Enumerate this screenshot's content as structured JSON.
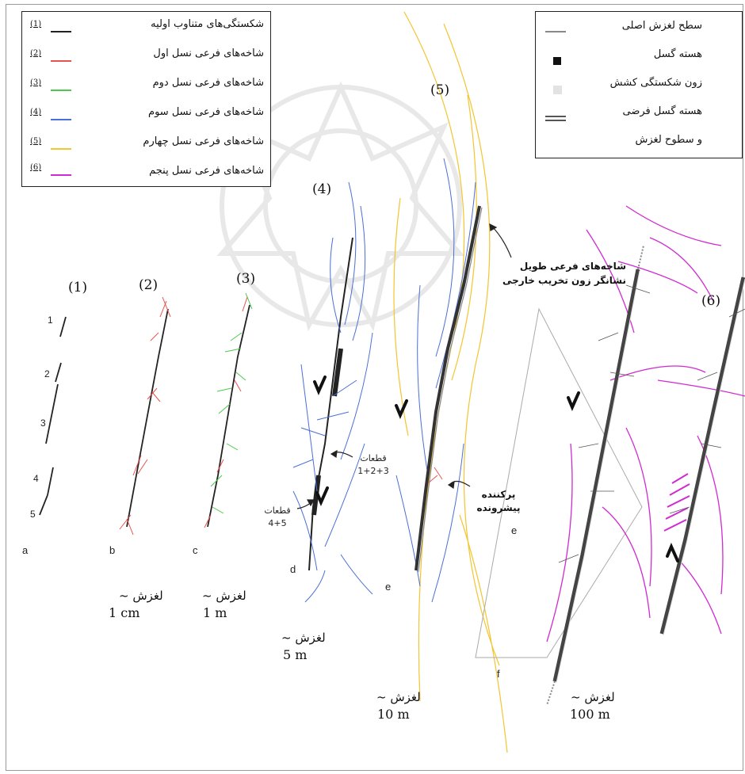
{
  "legend_left": {
    "items": [
      {
        "num": "(1)",
        "label": "شکستگی‌های متناوب اولیه",
        "color": "#222222"
      },
      {
        "num": "(2)",
        "label": "شاخه‌های فرعی نسل اول",
        "color": "#e8534f"
      },
      {
        "num": "(3)",
        "label": "شاخه‌های فرعی نسل دوم",
        "color": "#4cc94c"
      },
      {
        "num": "(4)",
        "label": "شاخه‌های فرعی نسل سوم",
        "color": "#4a6fd6"
      },
      {
        "num": "(5)",
        "label": "شاخه‌های فرعی نسل چهارم",
        "color": "#f2c531"
      },
      {
        "num": "(6)",
        "label": "شاخه‌های فرعی نسل پنجم",
        "color": "#d02ad0"
      }
    ]
  },
  "legend_right": {
    "items": [
      {
        "label": "سطح لغزش اصلی",
        "symbol": "line"
      },
      {
        "label": "هسته گسل",
        "symbol": "block"
      },
      {
        "label": "زون شکستگی کشش",
        "symbol": "light-square"
      },
      {
        "label": "هسته گسل فرضی",
        "symbol": "double-line"
      },
      {
        "label": "و سطوح لغزش",
        "symbol": "none"
      }
    ]
  },
  "stages": [
    "(1)",
    "(2)",
    "(3)",
    "(4)",
    "(5)",
    "(6)"
  ],
  "panels": [
    "a",
    "b",
    "c",
    "d",
    "e",
    "f"
  ],
  "segment_numbers": [
    "1",
    "2",
    "3",
    "4",
    "5"
  ],
  "slip_word": "لغزش ~",
  "slips": [
    "1 cm",
    "1 m",
    "5 m",
    "10 m",
    "100 m"
  ],
  "annotations": {
    "segments_123_word": "قطعات",
    "segments_123_nums": "1+2+3",
    "segments_45_word": "قطعات",
    "segments_45_nums": "4+5",
    "propagating_line1": "پرکننده",
    "propagating_line2": "پیشرونده",
    "long_splay_line1": "شاخه‌های فرعی طویل",
    "long_splay_line2": "نشانگر زون تخریب خارجی",
    "inset_label": "e"
  },
  "colors": {
    "gen1": "#222222",
    "gen2": "#e8534f",
    "gen3": "#4cc94c",
    "gen4": "#4a6fd6",
    "gen5": "#f2c531",
    "gen6": "#d02ad0",
    "core": "#3a3a3a"
  }
}
